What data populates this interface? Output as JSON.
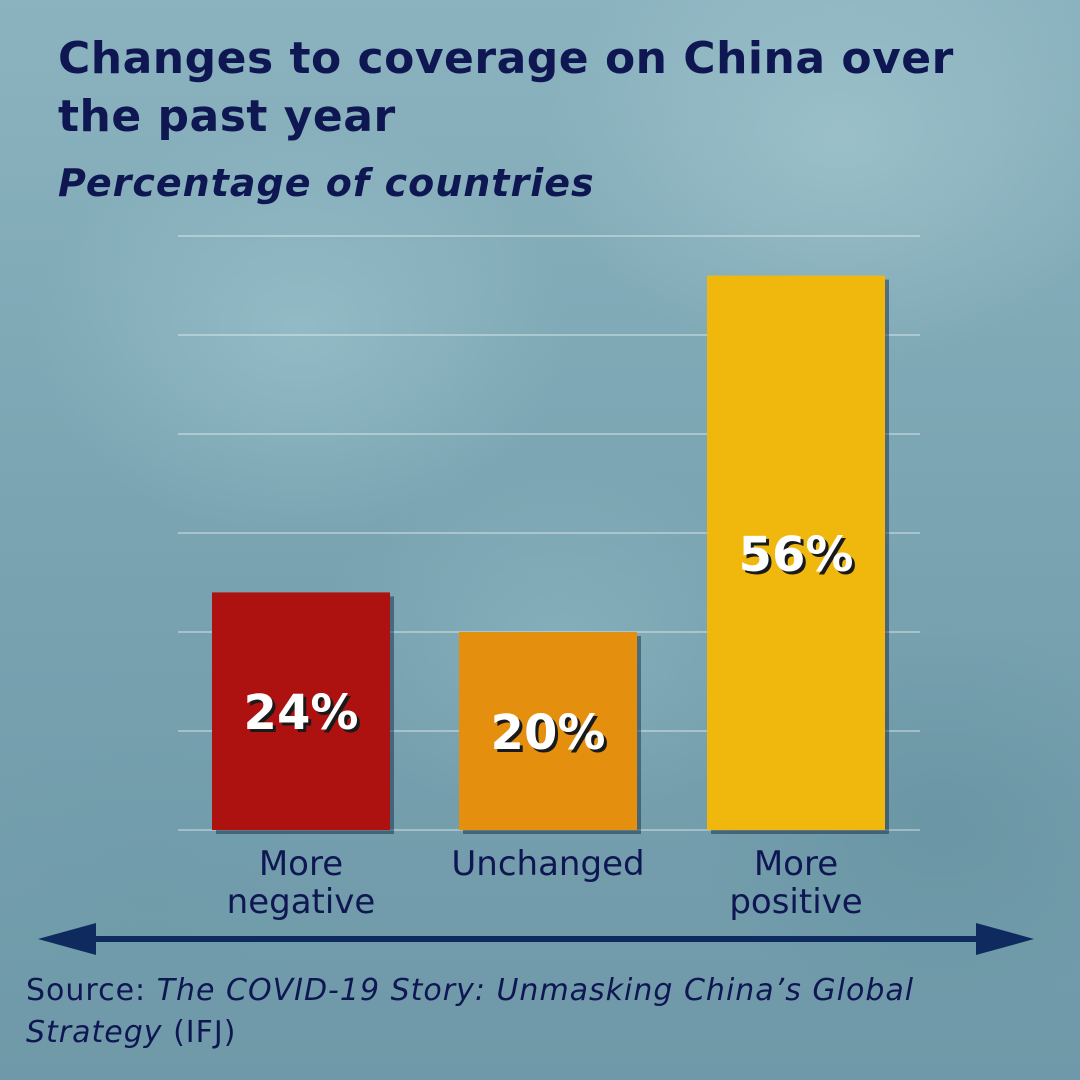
{
  "title": "Changes to coverage on China over the past year",
  "subtitle": "Percentage of countries",
  "source": {
    "prefix": "Source: ",
    "work": "The COVID-19 Story: Unmasking China’s Global Strategy",
    "suffix": " (IFJ)"
  },
  "colors": {
    "title": "#0f1753",
    "arrow": "#0f2a5e",
    "bars": [
      "#ae1210",
      "#e4900e",
      "#f0b80c"
    ]
  },
  "chart_data": {
    "type": "bar",
    "title": "Changes to coverage on China over the past year",
    "subtitle": "Percentage of countries",
    "categories": [
      [
        "More",
        "negative"
      ],
      [
        "Unchanged"
      ],
      [
        "More",
        "positive"
      ]
    ],
    "values": [
      24,
      20,
      56
    ],
    "data_labels": [
      "24%",
      "20%",
      "56%"
    ],
    "ylim": [
      0,
      60
    ],
    "grid": true,
    "axis_arrow": "double-headed arrow from negative to positive"
  }
}
